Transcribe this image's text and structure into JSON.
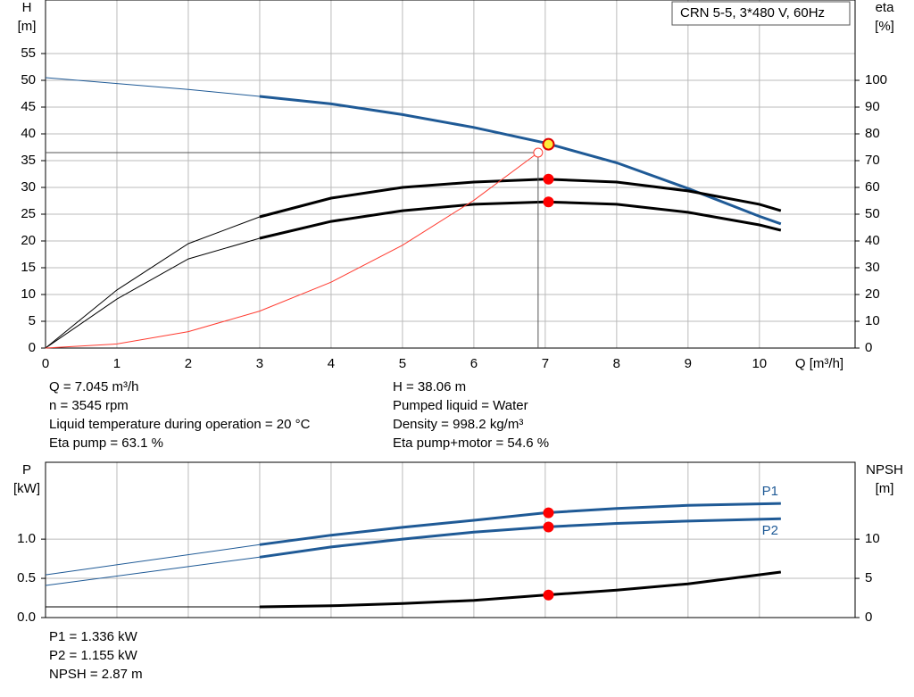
{
  "chart_data": [
    {
      "type": "line",
      "title": "CRN 5-5, 3*480 V, 60Hz",
      "x_label": "Q [m³/h]",
      "y_label": [
        "H",
        "[m]"
      ],
      "y2_label": [
        "eta",
        "[%]"
      ],
      "xlim": [
        0,
        11.34
      ],
      "ylim": [
        0,
        65
      ],
      "y2lim": [
        0,
        130
      ],
      "xticks": [
        0,
        1,
        2,
        3,
        4,
        5,
        6,
        7,
        8,
        9,
        10
      ],
      "yticks": [
        0,
        5,
        10,
        15,
        20,
        25,
        30,
        35,
        40,
        45,
        50,
        55
      ],
      "y2ticks": [
        0,
        10,
        20,
        30,
        40,
        50,
        60,
        70,
        80,
        90,
        100
      ],
      "grid": true,
      "thick_range": [
        3,
        10.3
      ],
      "series": [
        {
          "color": "#1f5a96",
          "x": [
            0,
            1,
            2,
            3,
            4,
            5,
            6,
            7,
            8,
            9,
            10,
            10.3
          ],
          "values": [
            50.5,
            49.4,
            48.3,
            47,
            45.6,
            43.6,
            41.2,
            38.3,
            34.6,
            29.8,
            24.6,
            23.2
          ]
        },
        {
          "color": "#000000",
          "axis": "y2",
          "x": [
            0,
            1,
            2,
            3,
            4,
            5,
            6,
            7,
            8,
            9,
            10,
            10.3
          ],
          "values": [
            0,
            21.7,
            39,
            49,
            56,
            60,
            62,
            63.1,
            62,
            58.7,
            53.7,
            51.3
          ]
        },
        {
          "color": "#000000",
          "axis": "y2",
          "x": [
            0,
            1,
            2,
            3,
            4,
            5,
            6,
            7,
            8,
            9,
            10,
            10.3
          ],
          "values": [
            0,
            18.3,
            33.3,
            41,
            47.3,
            51.3,
            53.7,
            54.6,
            53.7,
            50.7,
            46,
            44
          ]
        },
        {
          "color": "#ff3b30",
          "thin": true,
          "end_marker": true,
          "x": [
            0,
            1,
            2,
            3,
            4,
            5,
            6,
            6.9
          ],
          "values": [
            0,
            0.77,
            3.07,
            6.9,
            12.3,
            19.2,
            27.6,
            36.5
          ]
        }
      ],
      "points": [
        {
          "x": 7.045,
          "y": 38.06,
          "color": "#ffeb3b"
        },
        {
          "x": 7.045,
          "y": 63.1,
          "axis": "y2",
          "color": "#ff0000"
        },
        {
          "x": 7.045,
          "y": 54.6,
          "axis": "y2",
          "color": "#ff0000"
        }
      ],
      "annotations": [
        "Q = 7.045 m³/h",
        "n = 3545 rpm",
        "Liquid temperature during operation = 20 °C",
        "Eta pump = 63.1 %",
        "H = 38.06 m",
        "Pumped liquid = Water",
        "Density = 998.2 kg/m³",
        "Eta pump+motor = 54.6 %"
      ]
    },
    {
      "type": "line",
      "y_label": [
        "P",
        "[kW]"
      ],
      "y2_label": [
        "NPSH",
        "[m]"
      ],
      "xlim": [
        0,
        11.34
      ],
      "ylim": [
        0,
        1.98
      ],
      "y2lim": [
        0,
        19.8
      ],
      "xticks": [
        0,
        1,
        2,
        3,
        4,
        5,
        6,
        7,
        8,
        9,
        10
      ],
      "xtick_labels": false,
      "yticks": [
        {
          "value": 0,
          "label": "0.0"
        },
        0.5,
        {
          "value": 1,
          "label": "1.0"
        }
      ],
      "y2ticks": [
        0,
        5,
        10
      ],
      "grid": true,
      "thick_range": [
        3,
        10.3
      ],
      "series": [
        {
          "name": "P1",
          "color": "#1f5a96",
          "x": [
            0,
            3,
            4,
            5,
            6,
            7,
            8,
            9,
            10.3
          ],
          "values": [
            0.545,
            0.93,
            1.05,
            1.15,
            1.24,
            1.336,
            1.39,
            1.43,
            1.455
          ]
        },
        {
          "name": "P2",
          "color": "#1f5a96",
          "x": [
            0,
            3,
            4,
            5,
            6,
            7,
            8,
            9,
            10.3
          ],
          "values": [
            0.41,
            0.77,
            0.9,
            1.0,
            1.09,
            1.155,
            1.2,
            1.23,
            1.26
          ]
        },
        {
          "color": "#000000",
          "axis": "y2",
          "x": [
            0,
            3,
            4,
            5,
            6,
            7,
            8,
            9,
            10.3
          ],
          "values": [
            1.36,
            1.36,
            1.5,
            1.8,
            2.2,
            2.87,
            3.5,
            4.3,
            5.8
          ]
        }
      ],
      "points": [
        {
          "x": 7.045,
          "y": 1.336,
          "color": "#ff0000"
        },
        {
          "x": 7.045,
          "y": 1.155,
          "color": "#ff0000"
        },
        {
          "x": 7.045,
          "y": 2.87,
          "axis": "y2",
          "color": "#ff0000"
        }
      ],
      "annotations": [
        "P1 = 1.336 kW",
        "P2 = 1.155 kW",
        "NPSH = 2.87 m"
      ]
    }
  ]
}
